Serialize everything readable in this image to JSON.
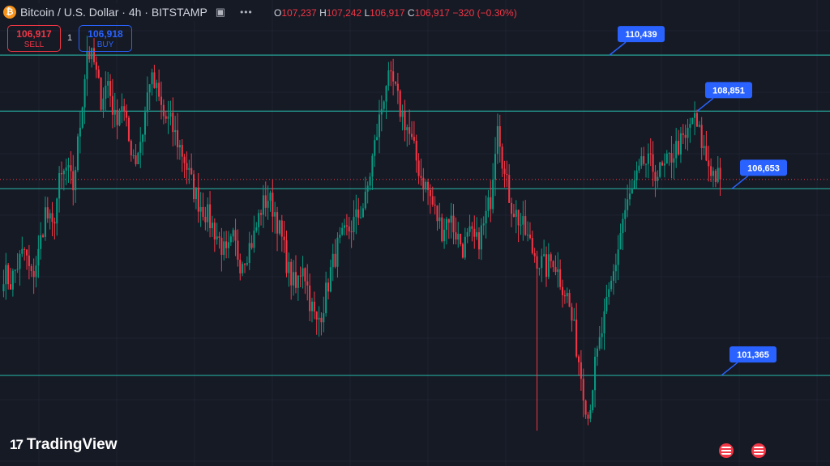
{
  "header": {
    "coin_glyph": "₿",
    "symbol": "Bitcoin / U.S. Dollar · 4h · BITSTAMP",
    "ohlc": {
      "o_label": "O",
      "o": "107,237",
      "h_label": "H",
      "h": "107,242",
      "l_label": "L",
      "l": "106,917",
      "c_label": "C",
      "c": "106,917",
      "change": "−320 (−0.30%)"
    }
  },
  "trade": {
    "sell_price": "106,917",
    "sell_label": "SELL",
    "spread": "1",
    "buy_price": "106,918",
    "buy_label": "BUY"
  },
  "branding": {
    "logo_mark": "17",
    "logo_text": "TradingView"
  },
  "colors": {
    "up": "#089981",
    "down": "#f23645",
    "level_line": "#26a69a",
    "label_bg": "#2962ff",
    "background": "#161a25"
  },
  "chart_data": {
    "type": "candlestick",
    "interval": "4h",
    "exchange": "BITSTAMP",
    "ylim": [
      98800,
      112000
    ],
    "level_lines": [
      {
        "label": "110,439",
        "value": 110439
      },
      {
        "label": "108,851",
        "value": 108851
      },
      {
        "label": "106,653",
        "value": 106653
      },
      {
        "label": "101,365",
        "value": 101365
      }
    ],
    "current_price": 106917,
    "close_path": [
      104300,
      104000,
      104500,
      104900,
      104100,
      104800,
      106000,
      105500,
      106800,
      107200,
      106700,
      108500,
      110600,
      110200,
      109200,
      109700,
      108600,
      109100,
      108000,
      107500,
      108300,
      109800,
      109400,
      108700,
      108500,
      108000,
      107500,
      106800,
      106300,
      106000,
      105600,
      105200,
      104700,
      105200,
      104600,
      104900,
      105300,
      106100,
      106400,
      106000,
      105200,
      104300,
      103800,
      104600,
      103500,
      102800,
      103400,
      104300,
      105000,
      105300,
      105600,
      105900,
      106300,
      107500,
      108600,
      109700,
      109600,
      108900,
      108400,
      107700,
      107000,
      106600,
      106000,
      105500,
      105900,
      105400,
      105000,
      105300,
      105100,
      105600,
      106400,
      108700,
      107000,
      106200,
      105800,
      105400,
      104900,
      104600,
      104400,
      104700,
      104100,
      103600,
      102600,
      101400,
      100200,
      101600,
      102600,
      103600,
      104600,
      105800,
      106400,
      106900,
      107400,
      107300,
      107100,
      107200,
      107600,
      107900,
      108000,
      108700,
      108200,
      107500,
      107100,
      106900
    ],
    "wick_low": 99800,
    "wick_high": 110900
  }
}
